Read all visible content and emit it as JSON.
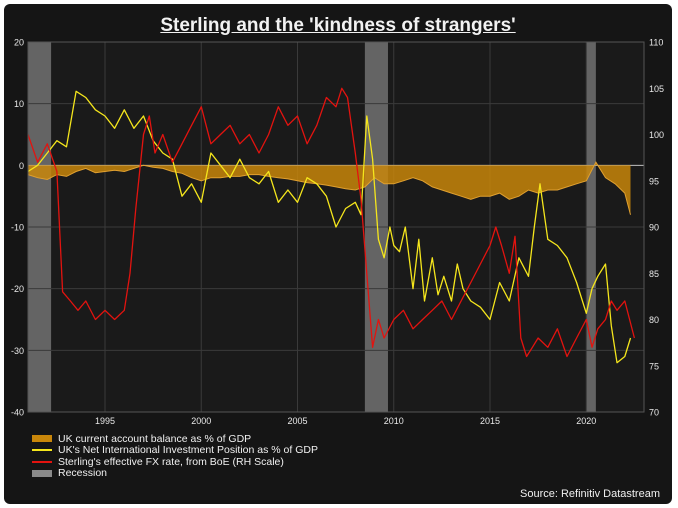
{
  "chart_data": {
    "type": "line",
    "title": "Sterling and the 'kindness of strangers'",
    "source": "Source: Refinitiv Datastream",
    "left_axis": {
      "min": -40,
      "max": 20,
      "ticks": [
        "20",
        "10",
        "0",
        "-10",
        "-20",
        "-30",
        "-40"
      ]
    },
    "right_axis": {
      "min": 70,
      "max": 110,
      "ticks": [
        "110",
        "105",
        "100",
        "95",
        "90",
        "85",
        "80",
        "75",
        "70"
      ]
    },
    "x_axis": {
      "min": 1991.0,
      "max": 2023.0,
      "ticks": [
        "1995",
        "2000",
        "2005",
        "2010",
        "2015",
        "2020"
      ]
    },
    "recessions": [
      [
        1991.0,
        1992.2
      ],
      [
        2008.5,
        2009.7
      ],
      [
        2020.0,
        2020.5
      ]
    ],
    "legend": [
      {
        "label": "UK current account balance as % of GDP",
        "color": "#c8860a"
      },
      {
        "label": "UK's Net International Investment Position as % of GDP",
        "color": "#f5e61c"
      },
      {
        "label": "Sterling's effective FX rate, from BoE (RH Scale)",
        "color": "#e3130f"
      },
      {
        "label": "Recession",
        "color": "#8a8a8a"
      }
    ],
    "series": [
      {
        "name": "UK current account balance as % of GDP",
        "axis": "left",
        "color": "#c8860a",
        "x": [
          1991.0,
          1991.5,
          1992.0,
          1992.5,
          1993.0,
          1993.5,
          1994.0,
          1994.5,
          1995.0,
          1995.5,
          1996.0,
          1996.5,
          1997.0,
          1997.5,
          1998.0,
          1998.5,
          1999.0,
          1999.5,
          2000.0,
          2000.5,
          2001.0,
          2001.5,
          2002.0,
          2002.5,
          2003.0,
          2003.5,
          2004.0,
          2004.5,
          2005.0,
          2005.5,
          2006.0,
          2006.5,
          2007.0,
          2007.5,
          2008.0,
          2008.5,
          2009.0,
          2009.5,
          2010.0,
          2010.5,
          2011.0,
          2011.5,
          2012.0,
          2012.5,
          2013.0,
          2013.5,
          2014.0,
          2014.5,
          2015.0,
          2015.5,
          2016.0,
          2016.5,
          2017.0,
          2017.5,
          2018.0,
          2018.5,
          2019.0,
          2019.5,
          2020.0,
          2020.5,
          2021.0,
          2021.5,
          2022.0,
          2022.3
        ],
        "y": [
          -1.5,
          -2.0,
          -2.3,
          -1.5,
          -1.8,
          -1.0,
          -0.5,
          -1.2,
          -1.0,
          -0.8,
          -1.0,
          -0.5,
          0.0,
          -0.3,
          -0.5,
          -1.0,
          -1.3,
          -2.0,
          -2.5,
          -2.0,
          -2.0,
          -1.8,
          -1.8,
          -1.5,
          -1.5,
          -1.8,
          -2.0,
          -2.2,
          -2.5,
          -2.8,
          -3.0,
          -3.2,
          -3.5,
          -3.8,
          -4.0,
          -3.5,
          -2.0,
          -3.0,
          -3.0,
          -2.5,
          -2.0,
          -2.5,
          -3.5,
          -4.0,
          -4.5,
          -5.0,
          -5.5,
          -5.0,
          -5.0,
          -4.5,
          -5.5,
          -5.0,
          -4.0,
          -4.5,
          -4.0,
          -4.0,
          -3.5,
          -3.0,
          -2.5,
          0.5,
          -2.0,
          -3.0,
          -4.5,
          -8.0
        ]
      },
      {
        "name": "UK's Net International Investment Position as % of GDP",
        "axis": "left",
        "color": "#f5e61c",
        "x": [
          1991.0,
          1991.5,
          1992.0,
          1992.5,
          1993.0,
          1993.5,
          1994.0,
          1994.5,
          1995.0,
          1995.5,
          1996.0,
          1996.5,
          1997.0,
          1997.5,
          1998.0,
          1998.5,
          1999.0,
          1999.5,
          2000.0,
          2000.5,
          2001.0,
          2001.5,
          2002.0,
          2002.5,
          2003.0,
          2003.5,
          2004.0,
          2004.5,
          2005.0,
          2005.5,
          2006.0,
          2006.5,
          2007.0,
          2007.5,
          2008.0,
          2008.3,
          2008.6,
          2008.9,
          2009.2,
          2009.5,
          2009.8,
          2010.0,
          2010.3,
          2010.6,
          2011.0,
          2011.3,
          2011.6,
          2012.0,
          2012.3,
          2012.6,
          2013.0,
          2013.3,
          2013.6,
          2014.0,
          2014.5,
          2015.0,
          2015.5,
          2016.0,
          2016.5,
          2017.0,
          2017.3,
          2017.6,
          2018.0,
          2018.5,
          2019.0,
          2019.5,
          2020.0,
          2020.3,
          2020.6,
          2021.0,
          2021.3,
          2021.6,
          2022.0,
          2022.3
        ],
        "y": [
          -1.0,
          0.0,
          2.0,
          4.0,
          3.0,
          12.0,
          11.0,
          9.0,
          8.0,
          6.0,
          9.0,
          6.0,
          8.0,
          4.0,
          2.0,
          1.0,
          -5.0,
          -3.0,
          -6.0,
          2.0,
          0.0,
          -2.0,
          1.0,
          -2.0,
          -3.0,
          -1.0,
          -6.0,
          -4.0,
          -6.0,
          -2.0,
          -3.0,
          -5.0,
          -10.0,
          -7.0,
          -6.0,
          -8.0,
          8.0,
          1.0,
          -12.0,
          -15.0,
          -10.0,
          -13.0,
          -14.0,
          -10.0,
          -20.0,
          -12.0,
          -22.0,
          -15.0,
          -21.0,
          -18.0,
          -22.0,
          -16.0,
          -20.0,
          -22.0,
          -23.0,
          -25.0,
          -19.0,
          -22.0,
          -15.0,
          -18.0,
          -10.0,
          -3.0,
          -12.0,
          -13.0,
          -15.0,
          -19.0,
          -24.0,
          -20.0,
          -18.0,
          -16.0,
          -26.0,
          -32.0,
          -31.0,
          -28.0
        ]
      },
      {
        "name": "Sterling's effective FX rate, from BoE (RH Scale)",
        "axis": "right",
        "color": "#e3130f",
        "x": [
          1991.0,
          1991.5,
          1992.0,
          1992.5,
          1992.8,
          1993.2,
          1993.6,
          1994.0,
          1994.5,
          1995.0,
          1995.5,
          1996.0,
          1996.3,
          1996.6,
          1997.0,
          1997.3,
          1997.6,
          1998.0,
          1998.5,
          1999.0,
          1999.5,
          2000.0,
          2000.5,
          2001.0,
          2001.5,
          2002.0,
          2002.5,
          2003.0,
          2003.5,
          2004.0,
          2004.5,
          2005.0,
          2005.5,
          2006.0,
          2006.5,
          2007.0,
          2007.3,
          2007.6,
          2008.0,
          2008.3,
          2008.6,
          2008.9,
          2009.2,
          2009.5,
          2010.0,
          2010.5,
          2011.0,
          2011.5,
          2012.0,
          2012.5,
          2013.0,
          2013.5,
          2014.0,
          2014.5,
          2015.0,
          2015.3,
          2015.6,
          2016.0,
          2016.3,
          2016.6,
          2016.9,
          2017.2,
          2017.5,
          2018.0,
          2018.5,
          2019.0,
          2019.5,
          2020.0,
          2020.3,
          2020.6,
          2021.0,
          2021.3,
          2021.6,
          2022.0,
          2022.5
        ],
        "y": [
          100.0,
          97.0,
          99.0,
          96.0,
          83.0,
          82.0,
          81.0,
          82.0,
          80.0,
          81.0,
          80.0,
          81.0,
          85.0,
          92.0,
          100.0,
          102.0,
          98.0,
          100.0,
          97.0,
          99.0,
          101.0,
          103.0,
          99.0,
          100.0,
          101.0,
          99.0,
          100.0,
          98.0,
          100.0,
          103.0,
          101.0,
          102.0,
          99.0,
          101.0,
          104.0,
          103.0,
          105.0,
          104.0,
          98.0,
          93.0,
          85.0,
          77.0,
          80.0,
          78.0,
          80.0,
          81.0,
          79.0,
          80.0,
          81.0,
          82.0,
          80.0,
          82.0,
          84.0,
          86.0,
          88.0,
          90.0,
          88.0,
          85.0,
          89.0,
          78.0,
          76.0,
          77.0,
          78.0,
          77.0,
          79.0,
          76.0,
          78.0,
          80.0,
          77.0,
          79.0,
          80.0,
          82.0,
          81.0,
          82.0,
          78.0
        ]
      }
    ]
  }
}
